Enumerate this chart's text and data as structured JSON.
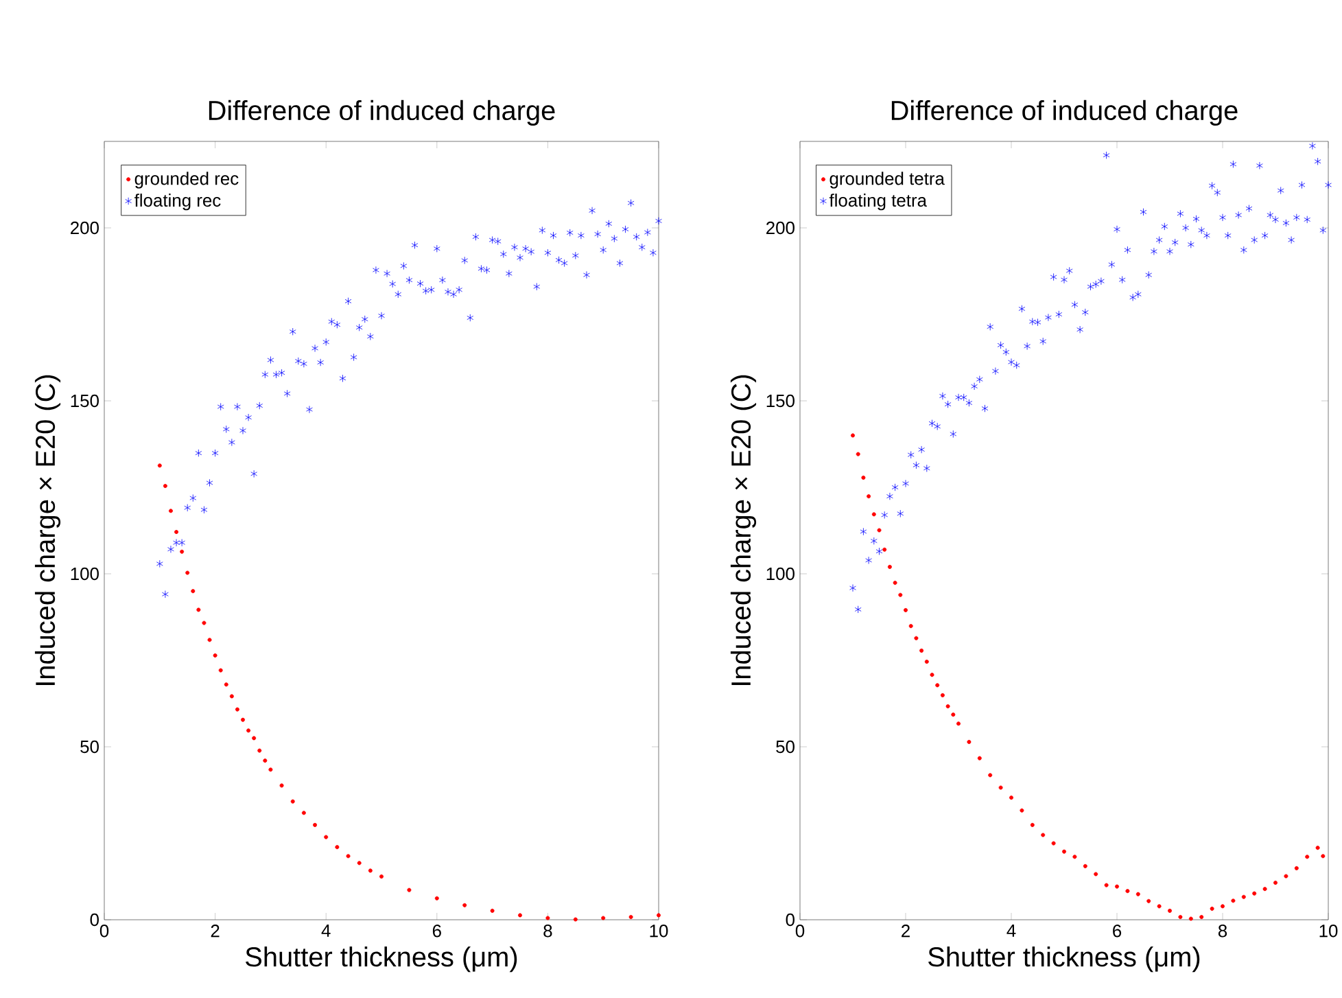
{
  "chart_data": [
    {
      "type": "scatter",
      "title": "Difference of induced charge",
      "xlabel": "Shutter thickness (μm)",
      "ylabel": "Induced charge × E20 (C)",
      "xlim": [
        0,
        10
      ],
      "ylim": [
        0,
        225
      ],
      "xticks": [
        0,
        2,
        4,
        6,
        8,
        10
      ],
      "yticks": [
        0,
        50,
        100,
        150,
        200
      ],
      "legend": "top left",
      "series": [
        {
          "name": "grounded rec",
          "color": "#ff0000",
          "marker": "circle",
          "x": [
            1.0,
            1.1,
            1.2,
            1.3,
            1.4,
            1.5,
            1.6,
            1.7,
            1.8,
            1.9,
            2.0,
            2.1,
            2.2,
            2.3,
            2.4,
            2.5,
            2.6,
            2.7,
            2.8,
            2.9,
            3.0,
            3.2,
            3.4,
            3.6,
            3.8,
            4.0,
            4.2,
            4.4,
            4.6,
            4.8,
            5.0,
            5.5,
            6.0,
            6.5,
            7.0,
            7.5,
            8.0,
            8.5,
            9.0,
            9.5,
            10.0
          ],
          "values": [
            131.3,
            125.4,
            118.2,
            112.1,
            106.4,
            100.3,
            95,
            89.6,
            85.8,
            80.9,
            76.4,
            72.1,
            68,
            64.6,
            60.8,
            57.8,
            54.7,
            52.5,
            48.9,
            46,
            43.4,
            38.8,
            34.2,
            30.9,
            27.4,
            23.9,
            21,
            18.4,
            16.4,
            14.2,
            12.5,
            8.6,
            6.2,
            4.2,
            2.6,
            1.3,
            0.5,
            0.1,
            0.5,
            0.8,
            1.3
          ]
        },
        {
          "name": "floating rec",
          "color": "#0000ff",
          "marker": "cross",
          "x": [
            1.0,
            1.1,
            1.2,
            1.3,
            1.4,
            1.5,
            1.6,
            1.7,
            1.8,
            1.9,
            2.0,
            2.1,
            2.2,
            2.3,
            2.4,
            2.5,
            2.6,
            2.7,
            2.8,
            2.9,
            3.0,
            3.1,
            3.2,
            3.3,
            3.4,
            3.5,
            3.6,
            3.7,
            3.8,
            3.9,
            4.0,
            4.1,
            4.2,
            4.3,
            4.4,
            4.5,
            4.6,
            4.7,
            4.8,
            4.9,
            5.0,
            5.1,
            5.2,
            5.3,
            5.4,
            5.5,
            5.6,
            5.7,
            5.8,
            5.9,
            6.0,
            6.1,
            6.2,
            6.3,
            6.4,
            6.5,
            6.6,
            6.7,
            6.8,
            6.9,
            7.0,
            7.1,
            7.2,
            7.3,
            7.4,
            7.5,
            7.6,
            7.7,
            7.8,
            7.9,
            8.0,
            8.1,
            8.2,
            8.3,
            8.4,
            8.5,
            8.6,
            8.7,
            8.8,
            8.9,
            9.0,
            9.1,
            9.2,
            9.3,
            9.4,
            9.5,
            9.6,
            9.7,
            9.8,
            9.9,
            10.0
          ],
          "values": [
            102.9,
            94.1,
            107.1,
            109,
            109,
            119.1,
            121.9,
            134.9,
            118.5,
            126.3,
            134.9,
            148.3,
            141.8,
            138,
            148.3,
            141.4,
            145.2,
            128.9,
            148.6,
            157.6,
            161.8,
            157.6,
            158.1,
            152.1,
            170,
            161.5,
            160.7,
            147.5,
            165.2,
            161.1,
            167,
            172.9,
            172,
            156.5,
            178.8,
            162.6,
            171.2,
            173.6,
            168.6,
            187.8,
            174.6,
            186.8,
            183.8,
            180.8,
            189,
            184.9,
            195,
            183.9,
            181.8,
            182.1,
            194,
            184.9,
            181.5,
            180.8,
            182.1,
            190.6,
            174,
            197.4,
            188.2,
            187.8,
            196.5,
            196.1,
            192.4,
            186.8,
            194.4,
            191.4,
            194,
            193.1,
            183,
            199.3,
            192.8,
            197.8,
            190.7,
            189.8,
            198.6,
            192,
            197.8,
            186.4,
            205,
            198.2,
            193.6,
            201.2,
            196.9,
            189.8,
            199.6,
            207.2,
            197.4,
            194.4,
            198.7,
            192.8,
            202
          ]
        }
      ]
    },
    {
      "type": "scatter",
      "title": "Difference of induced charge",
      "xlabel": "Shutter thickness (μm)",
      "ylabel": "Induced charge × E20 (C)",
      "xlim": [
        0,
        10
      ],
      "ylim": [
        0,
        225
      ],
      "xticks": [
        0,
        2,
        4,
        6,
        8,
        10
      ],
      "yticks": [
        0,
        50,
        100,
        150,
        200
      ],
      "legend": "top left",
      "series": [
        {
          "name": "grounded tetra",
          "color": "#ff0000",
          "marker": "circle",
          "x": [
            1.0,
            1.1,
            1.2,
            1.3,
            1.4,
            1.5,
            1.6,
            1.7,
            1.8,
            1.9,
            2.0,
            2.1,
            2.2,
            2.3,
            2.4,
            2.5,
            2.6,
            2.7,
            2.8,
            2.9,
            3.0,
            3.2,
            3.4,
            3.6,
            3.8,
            4.0,
            4.2,
            4.4,
            4.6,
            4.8,
            5.0,
            5.2,
            5.4,
            5.6,
            5.8,
            6.0,
            6.2,
            6.4,
            6.6,
            6.8,
            7.0,
            7.2,
            7.4,
            7.6,
            7.8,
            8.0,
            8.2,
            8.4,
            8.6,
            8.8,
            9.0,
            9.2,
            9.4,
            9.6,
            9.8,
            9.9
          ],
          "values": [
            140,
            134.6,
            127.8,
            122.4,
            117.2,
            112.6,
            107,
            102,
            97.4,
            93.9,
            89.5,
            84.9,
            81.4,
            77.8,
            74.6,
            70.8,
            67.8,
            64.9,
            61.7,
            59.3,
            56.7,
            51.4,
            46.7,
            41.8,
            38.2,
            35.3,
            31.6,
            27.4,
            24.5,
            22.1,
            19.7,
            18.2,
            15.5,
            13.2,
            10,
            9.6,
            8.3,
            7.4,
            5.4,
            3.9,
            2.6,
            0.8,
            0.3,
            0.8,
            3.2,
            3.9,
            5.5,
            6.6,
            7.6,
            8.9,
            10.7,
            12.6,
            14.9,
            18.2,
            20.8,
            18.4
          ]
        },
        {
          "name": "floating tetra",
          "color": "#0000ff",
          "marker": "cross",
          "x": [
            1.0,
            1.1,
            1.2,
            1.3,
            1.4,
            1.5,
            1.6,
            1.7,
            1.8,
            1.9,
            2.0,
            2.1,
            2.2,
            2.3,
            2.4,
            2.5,
            2.6,
            2.7,
            2.8,
            2.9,
            3.0,
            3.1,
            3.2,
            3.3,
            3.4,
            3.5,
            3.6,
            3.7,
            3.8,
            3.9,
            4.0,
            4.1,
            4.2,
            4.3,
            4.4,
            4.5,
            4.6,
            4.7,
            4.8,
            4.9,
            5.0,
            5.1,
            5.2,
            5.3,
            5.4,
            5.5,
            5.6,
            5.7,
            5.8,
            5.9,
            6.0,
            6.1,
            6.2,
            6.3,
            6.4,
            6.5,
            6.6,
            6.7,
            6.8,
            6.9,
            7.0,
            7.1,
            7.2,
            7.3,
            7.4,
            7.5,
            7.6,
            7.7,
            7.8,
            7.9,
            8.0,
            8.1,
            8.2,
            8.3,
            8.4,
            8.5,
            8.6,
            8.7,
            8.8,
            8.9,
            9.0,
            9.1,
            9.2,
            9.3,
            9.4,
            9.5,
            9.6,
            9.7,
            9.8,
            9.9,
            10.0
          ],
          "values": [
            95.9,
            89.7,
            112.2,
            103.9,
            109.5,
            106.5,
            117,
            122.4,
            125,
            117.4,
            126.1,
            134.4,
            131.4,
            135.9,
            130.5,
            143.5,
            142.6,
            151.4,
            149,
            140.4,
            151,
            151,
            149.4,
            154.2,
            156.2,
            147.8,
            171.4,
            158.6,
            166.1,
            164.1,
            161.2,
            160.3,
            176.6,
            165.8,
            172.9,
            172.7,
            167.2,
            174.1,
            185.8,
            175,
            185,
            187.6,
            177.8,
            170.6,
            175.6,
            183,
            183.7,
            184.6,
            221,
            189.4,
            199.6,
            185,
            193.6,
            179.9,
            180.8,
            204.6,
            186.4,
            193.2,
            196.5,
            200.4,
            193.2,
            195.8,
            204.1,
            200,
            195.2,
            202.6,
            199.3,
            197.8,
            212.2,
            210.2,
            203,
            197.8,
            218.4,
            203.7,
            193.6,
            205.6,
            196.5,
            218,
            197.8,
            203.7,
            202.4,
            210.8,
            201.4,
            196.5,
            203,
            212.4,
            202.4,
            223.7,
            219.2,
            199.3,
            212.4
          ]
        }
      ]
    }
  ]
}
